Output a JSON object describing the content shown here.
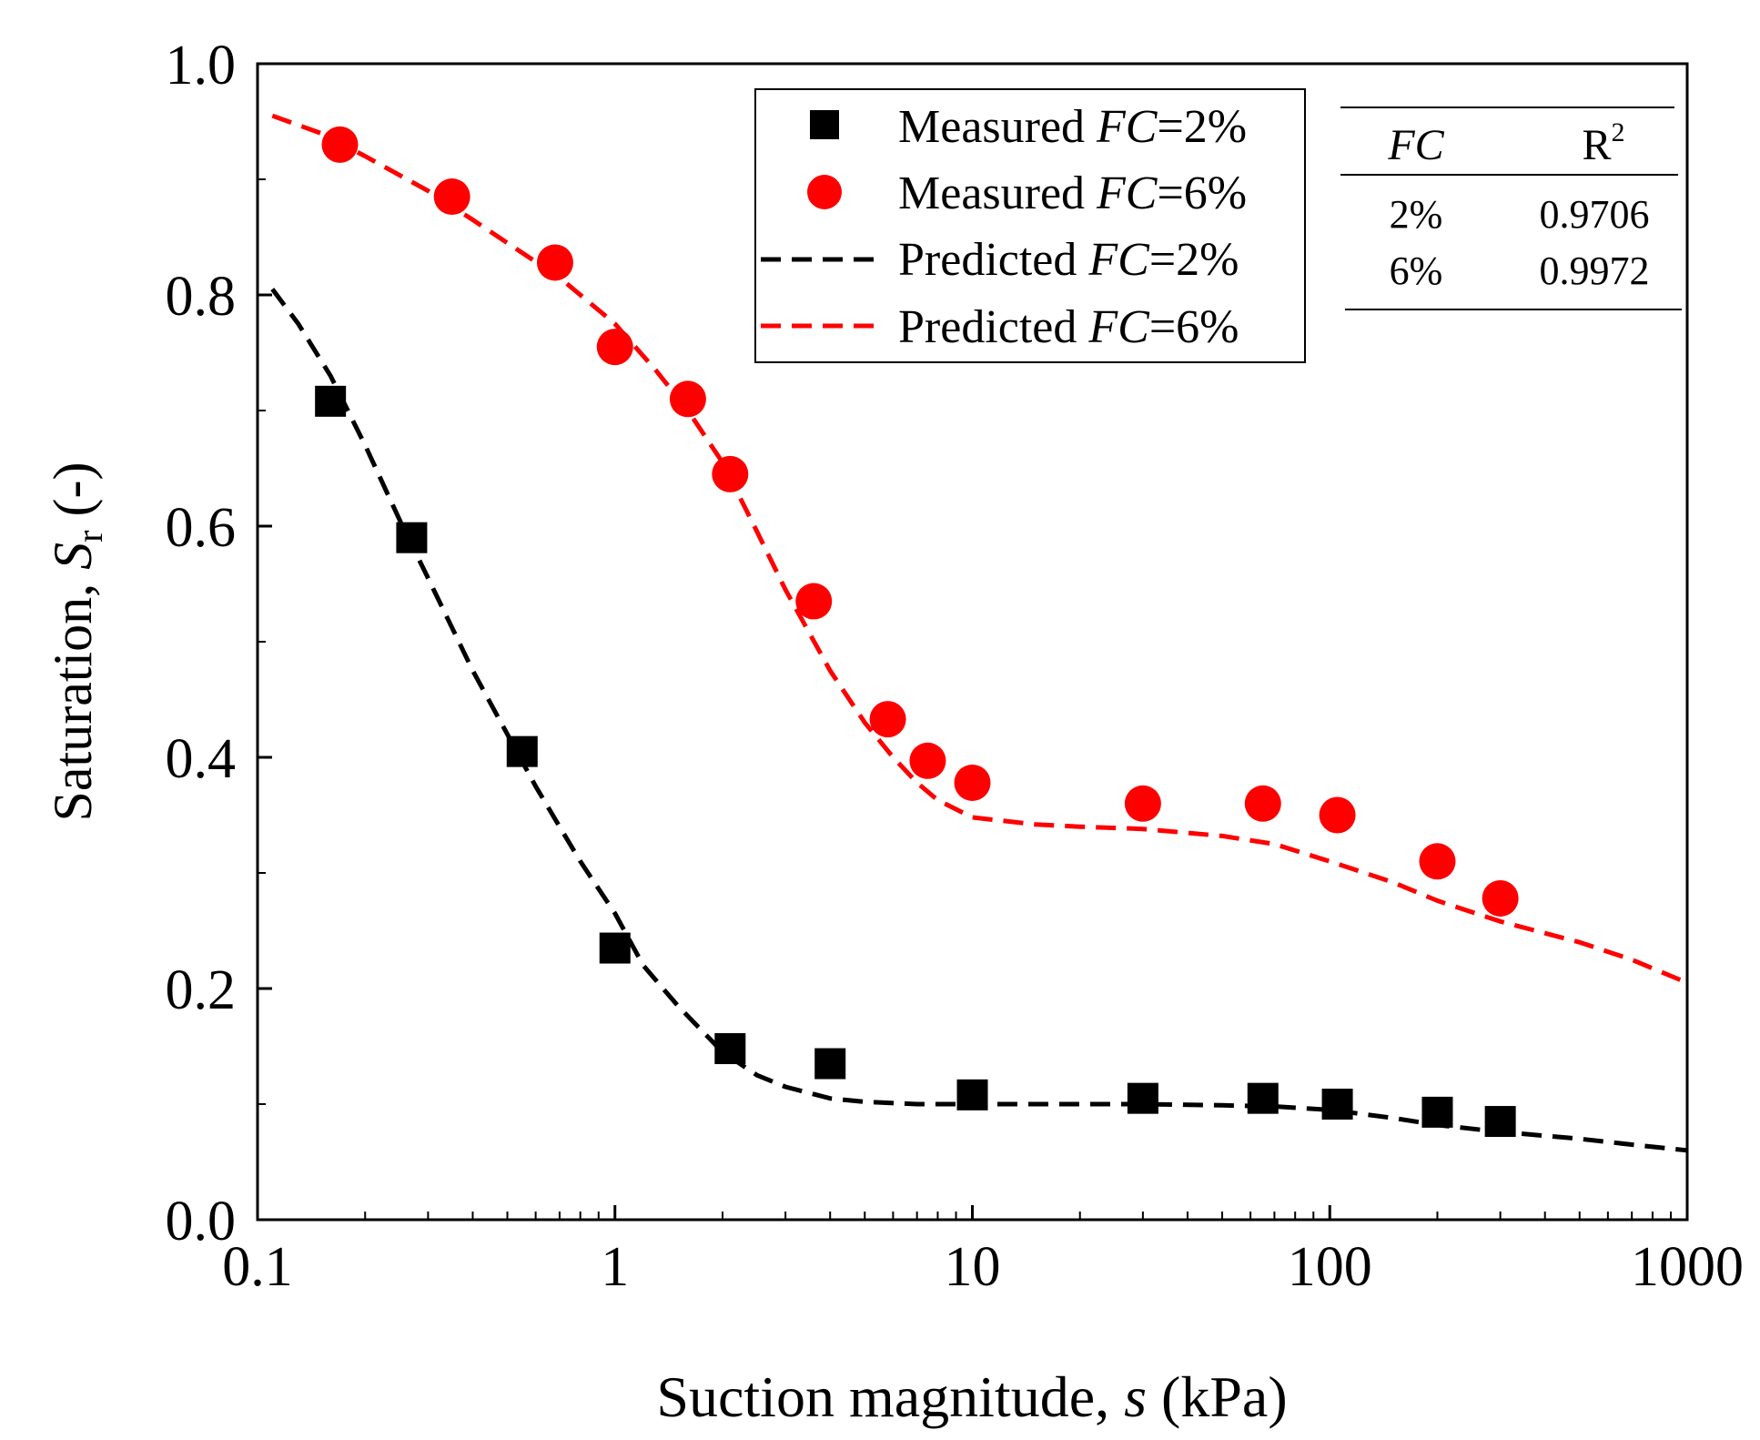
{
  "chart_data": {
    "type": "scatter",
    "x_scale": "log",
    "xlabel": {
      "prefix": "Suction magnitude, ",
      "symbol": "s",
      "suffix": " (kPa)"
    },
    "ylabel": {
      "prefix": "Saturation, ",
      "symbol": "S",
      "subscript": "r",
      "suffix": " (-)"
    },
    "xlim": [
      0.1,
      1000
    ],
    "ylim": [
      0.0,
      1.0
    ],
    "x_ticks": [
      "0.1",
      "1",
      "10",
      "100",
      "1000"
    ],
    "x_tick_values": [
      0.1,
      1,
      10,
      100,
      1000
    ],
    "y_ticks": [
      "0.0",
      "0.2",
      "0.4",
      "0.6",
      "0.8",
      "1.0"
    ],
    "y_tick_values": [
      0.0,
      0.2,
      0.4,
      0.6,
      0.8,
      1.0
    ],
    "series": [
      {
        "name": "Measured FC=2%",
        "kind": "marker-square",
        "color": "#000000",
        "legend": {
          "prefix": "Measured ",
          "italic": "FC",
          "suffix": "=2%"
        },
        "x": [
          0.16,
          0.27,
          0.55,
          1.0,
          2.1,
          4.0,
          10.0,
          30.0,
          65.0,
          105.0,
          200.0,
          300.0
        ],
        "y": [
          0.708,
          0.59,
          0.405,
          0.235,
          0.148,
          0.135,
          0.108,
          0.105,
          0.105,
          0.1,
          0.093,
          0.085
        ]
      },
      {
        "name": "Measured FC=6%",
        "kind": "marker-circle",
        "color": "#ff0000",
        "legend": {
          "prefix": "Measured ",
          "italic": "FC",
          "suffix": "=6%"
        },
        "x": [
          0.17,
          0.35,
          0.68,
          1.0,
          1.6,
          2.1,
          3.6,
          5.8,
          7.5,
          10.0,
          30.0,
          65.0,
          105.0,
          200.0,
          300.0
        ],
        "y": [
          0.93,
          0.885,
          0.828,
          0.755,
          0.71,
          0.645,
          0.535,
          0.433,
          0.397,
          0.378,
          0.36,
          0.36,
          0.35,
          0.31,
          0.278
        ]
      },
      {
        "name": "Predicted FC=2%",
        "kind": "dashed-line",
        "color": "#000000",
        "legend": {
          "prefix": "Predicted ",
          "italic": "FC",
          "suffix": "=2%"
        },
        "x": [
          0.11,
          0.13,
          0.16,
          0.2,
          0.25,
          0.3,
          0.4,
          0.5,
          0.6,
          0.7,
          0.8,
          1.0,
          1.2,
          1.5,
          2.0,
          2.5,
          3.0,
          4.0,
          5.0,
          7.0,
          10.0,
          20.0,
          30.0,
          50.0,
          70.0,
          100.0,
          150.0,
          200.0,
          300.0,
          500.0,
          700.0,
          1000.0
        ],
        "y": [
          0.805,
          0.775,
          0.73,
          0.67,
          0.605,
          0.555,
          0.475,
          0.42,
          0.375,
          0.34,
          0.31,
          0.265,
          0.22,
          0.185,
          0.145,
          0.125,
          0.115,
          0.105,
          0.102,
          0.1,
          0.1,
          0.1,
          0.1,
          0.099,
          0.098,
          0.095,
          0.088,
          0.082,
          0.076,
          0.07,
          0.065,
          0.06
        ]
      },
      {
        "name": "Predicted FC=6%",
        "kind": "dashed-line",
        "color": "#ff0000",
        "legend": {
          "prefix": "Predicted ",
          "italic": "FC",
          "suffix": "=6%"
        },
        "x": [
          0.11,
          0.15,
          0.2,
          0.3,
          0.4,
          0.5,
          0.7,
          1.0,
          1.3,
          1.6,
          2.0,
          2.5,
          3.0,
          4.0,
          5.0,
          6.0,
          7.0,
          8.0,
          10.0,
          15.0,
          20.0,
          30.0,
          50.0,
          70.0,
          100.0,
          150.0,
          200.0,
          300.0,
          500.0,
          700.0,
          1000.0
        ],
        "y": [
          0.955,
          0.94,
          0.92,
          0.89,
          0.865,
          0.845,
          0.815,
          0.775,
          0.735,
          0.7,
          0.655,
          0.595,
          0.545,
          0.475,
          0.43,
          0.4,
          0.378,
          0.363,
          0.348,
          0.342,
          0.34,
          0.338,
          0.332,
          0.325,
          0.31,
          0.292,
          0.276,
          0.258,
          0.24,
          0.225,
          0.205
        ]
      }
    ],
    "inset_table": {
      "header_italic": "FC",
      "header_r": "R",
      "header_sup": "2",
      "rows": [
        {
          "fc": "2%",
          "r2": "0.9706"
        },
        {
          "fc": "6%",
          "r2": "0.9972"
        }
      ]
    },
    "legend_position": "top-right"
  }
}
